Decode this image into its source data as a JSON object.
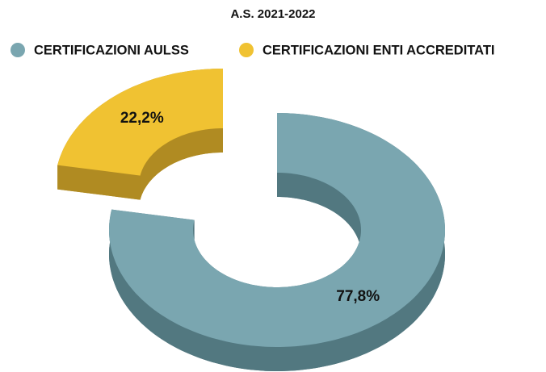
{
  "chart_data": {
    "type": "donut3d",
    "title": "A.S. 2021-2022",
    "categories": [
      "CERTIFICAZIONI AULSS",
      "CERTIFICAZIONI ENTI ACCREDITATI"
    ],
    "values": [
      77.8,
      22.2
    ],
    "value_labels": [
      "77,8%",
      "22,2%"
    ],
    "colors": [
      "#7aa6b0",
      "#f0c232"
    ],
    "side_colors": [
      "#527880",
      "#b08b22"
    ],
    "legend": "top"
  }
}
